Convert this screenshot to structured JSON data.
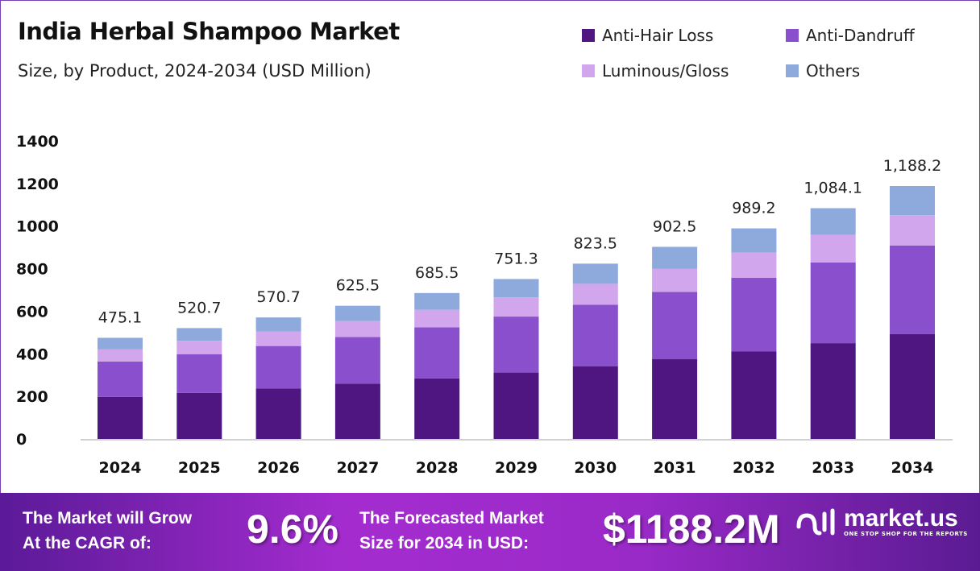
{
  "chart_data": {
    "type": "bar",
    "stacked": true,
    "title": "India Herbal Shampoo Market",
    "subtitle": "Size, by Product, 2024-2034 (USD Million)",
    "categories": [
      "2024",
      "2025",
      "2026",
      "2027",
      "2028",
      "2029",
      "2030",
      "2031",
      "2032",
      "2033",
      "2034"
    ],
    "series": [
      {
        "name": "Anti-Hair Loss",
        "color": "#4f1581",
        "values": [
          197.2,
          216.1,
          236.8,
          259.6,
          284.5,
          311.8,
          341.8,
          374.5,
          410.5,
          449.9,
          493.1
        ]
      },
      {
        "name": "Anti-Dandruff",
        "color": "#8a4fcc",
        "values": [
          166.3,
          182.2,
          199.7,
          218.9,
          239.9,
          263.0,
          288.2,
          315.9,
          346.2,
          379.4,
          415.9
        ]
      },
      {
        "name": "Luminous/Gloss",
        "color": "#d1a6ec",
        "values": [
          57.0,
          62.5,
          68.5,
          75.1,
          82.3,
          90.2,
          98.8,
          108.3,
          118.7,
          130.1,
          142.6
        ]
      },
      {
        "name": "Others",
        "color": "#8eaadd",
        "values": [
          54.6,
          59.9,
          65.7,
          71.9,
          78.8,
          86.3,
          94.7,
          103.8,
          113.8,
          124.7,
          136.6
        ]
      }
    ],
    "totals_labels": [
      "475.1",
      "520.7",
      "570.7",
      "625.5",
      "685.5",
      "751.3",
      "823.5",
      "902.5",
      "989.2",
      "1,084.1",
      "1,188.2"
    ],
    "ylim": [
      0,
      1400
    ],
    "yticks": [
      "0",
      "200",
      "400",
      "600",
      "800",
      "1000",
      "1200",
      "1400"
    ],
    "grid": false,
    "legend_position": "top-right"
  },
  "footer": {
    "cagr_text_1": "The Market will Grow",
    "cagr_text_2": "At the CAGR of:",
    "cagr_value": "9.6%",
    "forecast_text_1": "The Forecasted Market",
    "forecast_text_2": "Size for 2034 in USD:",
    "forecast_value": "$1188.2M",
    "logo_name": "market.us",
    "logo_tagline": "ONE STOP SHOP FOR THE REPORTS"
  }
}
